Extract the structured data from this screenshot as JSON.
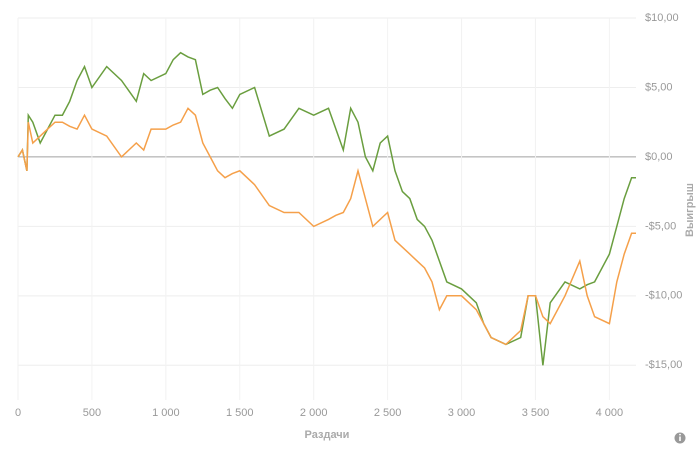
{
  "chart_data": {
    "type": "line",
    "x_label": "Раздачи",
    "y_label": "Выигрыш",
    "x": [
      0,
      30,
      60,
      70,
      100,
      150,
      200,
      250,
      300,
      350,
      400,
      450,
      500,
      600,
      700,
      800,
      850,
      900,
      1000,
      1050,
      1100,
      1150,
      1200,
      1250,
      1300,
      1350,
      1400,
      1450,
      1500,
      1600,
      1700,
      1800,
      1900,
      2000,
      2100,
      2150,
      2200,
      2250,
      2300,
      2350,
      2400,
      2450,
      2500,
      2550,
      2600,
      2650,
      2700,
      2750,
      2800,
      2850,
      2900,
      3000,
      3100,
      3150,
      3200,
      3300,
      3400,
      3450,
      3500,
      3550,
      3600,
      3700,
      3800,
      3850,
      3900,
      4000,
      4050,
      4100,
      4150,
      4180
    ],
    "series": [
      {
        "color": "#6a9e3f",
        "values": [
          0,
          0.5,
          -1,
          3,
          2.5,
          1,
          2,
          3,
          3,
          4,
          5.5,
          6.5,
          5,
          6.5,
          5.5,
          4,
          6,
          5.5,
          6,
          7,
          7.5,
          7.2,
          7,
          4.5,
          4.8,
          5,
          4.2,
          3.5,
          4.5,
          5,
          1.5,
          2,
          3.5,
          3,
          3.5,
          2,
          0.5,
          3.5,
          2.5,
          0,
          -1,
          1,
          1.5,
          -1,
          -2.5,
          -3,
          -4.5,
          -5,
          -6,
          -7.5,
          -9,
          -9.5,
          -10.5,
          -12,
          -13,
          -13.5,
          -13,
          -10,
          -10,
          -15,
          -10.5,
          -9,
          -9.5,
          -9.2,
          -9,
          -7,
          -5,
          -3,
          -1.5,
          -1.5
        ]
      },
      {
        "color": "#f5a04a",
        "values": [
          0,
          0.5,
          -1,
          2.5,
          1,
          1.5,
          2,
          2.5,
          2.5,
          2.2,
          2,
          3,
          2,
          1.5,
          0,
          1,
          0.5,
          2,
          2,
          2.3,
          2.5,
          3.5,
          3,
          1,
          0,
          -1,
          -1.5,
          -1.2,
          -1,
          -2,
          -3.5,
          -4,
          -4,
          -5,
          -4.5,
          -4.2,
          -4,
          -3,
          -1,
          -3,
          -5,
          -4.5,
          -4,
          -6,
          -6.5,
          -7,
          -7.5,
          -8,
          -9,
          -11,
          -10,
          -10,
          -11,
          -12,
          -13,
          -13.5,
          -12.5,
          -10,
          -10,
          -11.5,
          -12,
          -10,
          -7.5,
          -10,
          -11.5,
          -12,
          -9,
          -7,
          -5.5,
          -5.5
        ]
      }
    ],
    "xlim": [
      0,
      4180
    ],
    "xticks": [
      0,
      500,
      {
        "value": 1000,
        "label": "1 000"
      },
      {
        "value": 1500,
        "label": "1 500"
      },
      {
        "value": 2000,
        "label": "2 000"
      },
      {
        "value": 2500,
        "label": "2 500"
      },
      {
        "value": 3000,
        "label": "3 000"
      },
      {
        "value": 3500,
        "label": "3 500"
      },
      {
        "value": 4000,
        "label": "4 000"
      }
    ],
    "ylim": [
      -17.5,
      10
    ],
    "yticks": [
      {
        "value": -15,
        "label": "-$15,00"
      },
      {
        "value": -10,
        "label": "-$10,00"
      },
      {
        "value": -5,
        "label": "-$5,00"
      },
      {
        "value": 0,
        "label": "$0,00"
      },
      {
        "value": 5,
        "label": "$5,00"
      },
      {
        "value": 10,
        "label": "$10,00"
      }
    ],
    "grid": true
  }
}
